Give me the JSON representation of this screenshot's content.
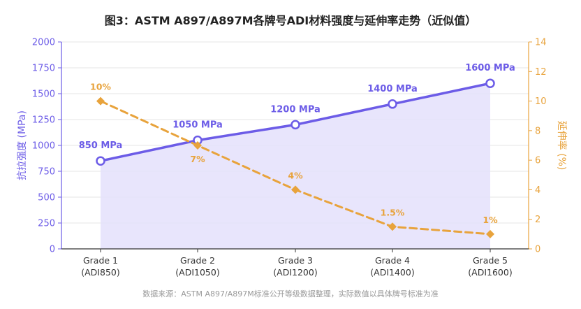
{
  "title": "图3：ASTM A897/A897M各牌号ADI材料强度与延伸率走势（近似值）",
  "source_note": "数据来源：ASTM A897/A897M标准公开等级数据整理，实际数值以具体牌号标准为准",
  "colors": {
    "strength": "#6c5ce7",
    "strength_fill": "#e4e0fb",
    "elongation": "#e8a33c",
    "grid": "#e6e6e6",
    "axis": "#333333"
  },
  "chart_data": {
    "type": "line",
    "title": "图3：ASTM A897/A897M各牌号ADI材料强度与延伸率走势（近似值）",
    "categories": [
      [
        "Grade 1",
        "(ADI850)"
      ],
      [
        "Grade 2",
        "(ADI1050)"
      ],
      [
        "Grade 3",
        "(ADI1200)"
      ],
      [
        "Grade 4",
        "(ADI1400)"
      ],
      [
        "Grade 5",
        "(ADI1600)"
      ]
    ],
    "y_left": {
      "label": "抗拉强度 (MPa)",
      "range": [
        0,
        2000
      ],
      "ticks": [
        0,
        250,
        500,
        750,
        1000,
        1250,
        1500,
        1750,
        2000
      ]
    },
    "y_right": {
      "label": "延伸率 (%)",
      "range": [
        0,
        14
      ],
      "ticks": [
        0,
        2,
        4,
        6,
        8,
        10,
        12,
        14
      ]
    },
    "series": [
      {
        "axis": "left",
        "style": "solid-line-area",
        "marker": "circle",
        "values": [
          850,
          1050,
          1200,
          1400,
          1600
        ],
        "labels": [
          "850 MPa",
          "1050 MPa",
          "1200 MPa",
          "1400 MPa",
          "1600 MPa"
        ]
      },
      {
        "axis": "right",
        "style": "dashed-line",
        "marker": "diamond",
        "values": [
          10,
          7,
          4,
          1.5,
          1
        ],
        "labels": [
          "10%",
          "7%",
          "4%",
          "1.5%",
          "1%"
        ]
      }
    ],
    "grid": true,
    "legend": "none"
  }
}
